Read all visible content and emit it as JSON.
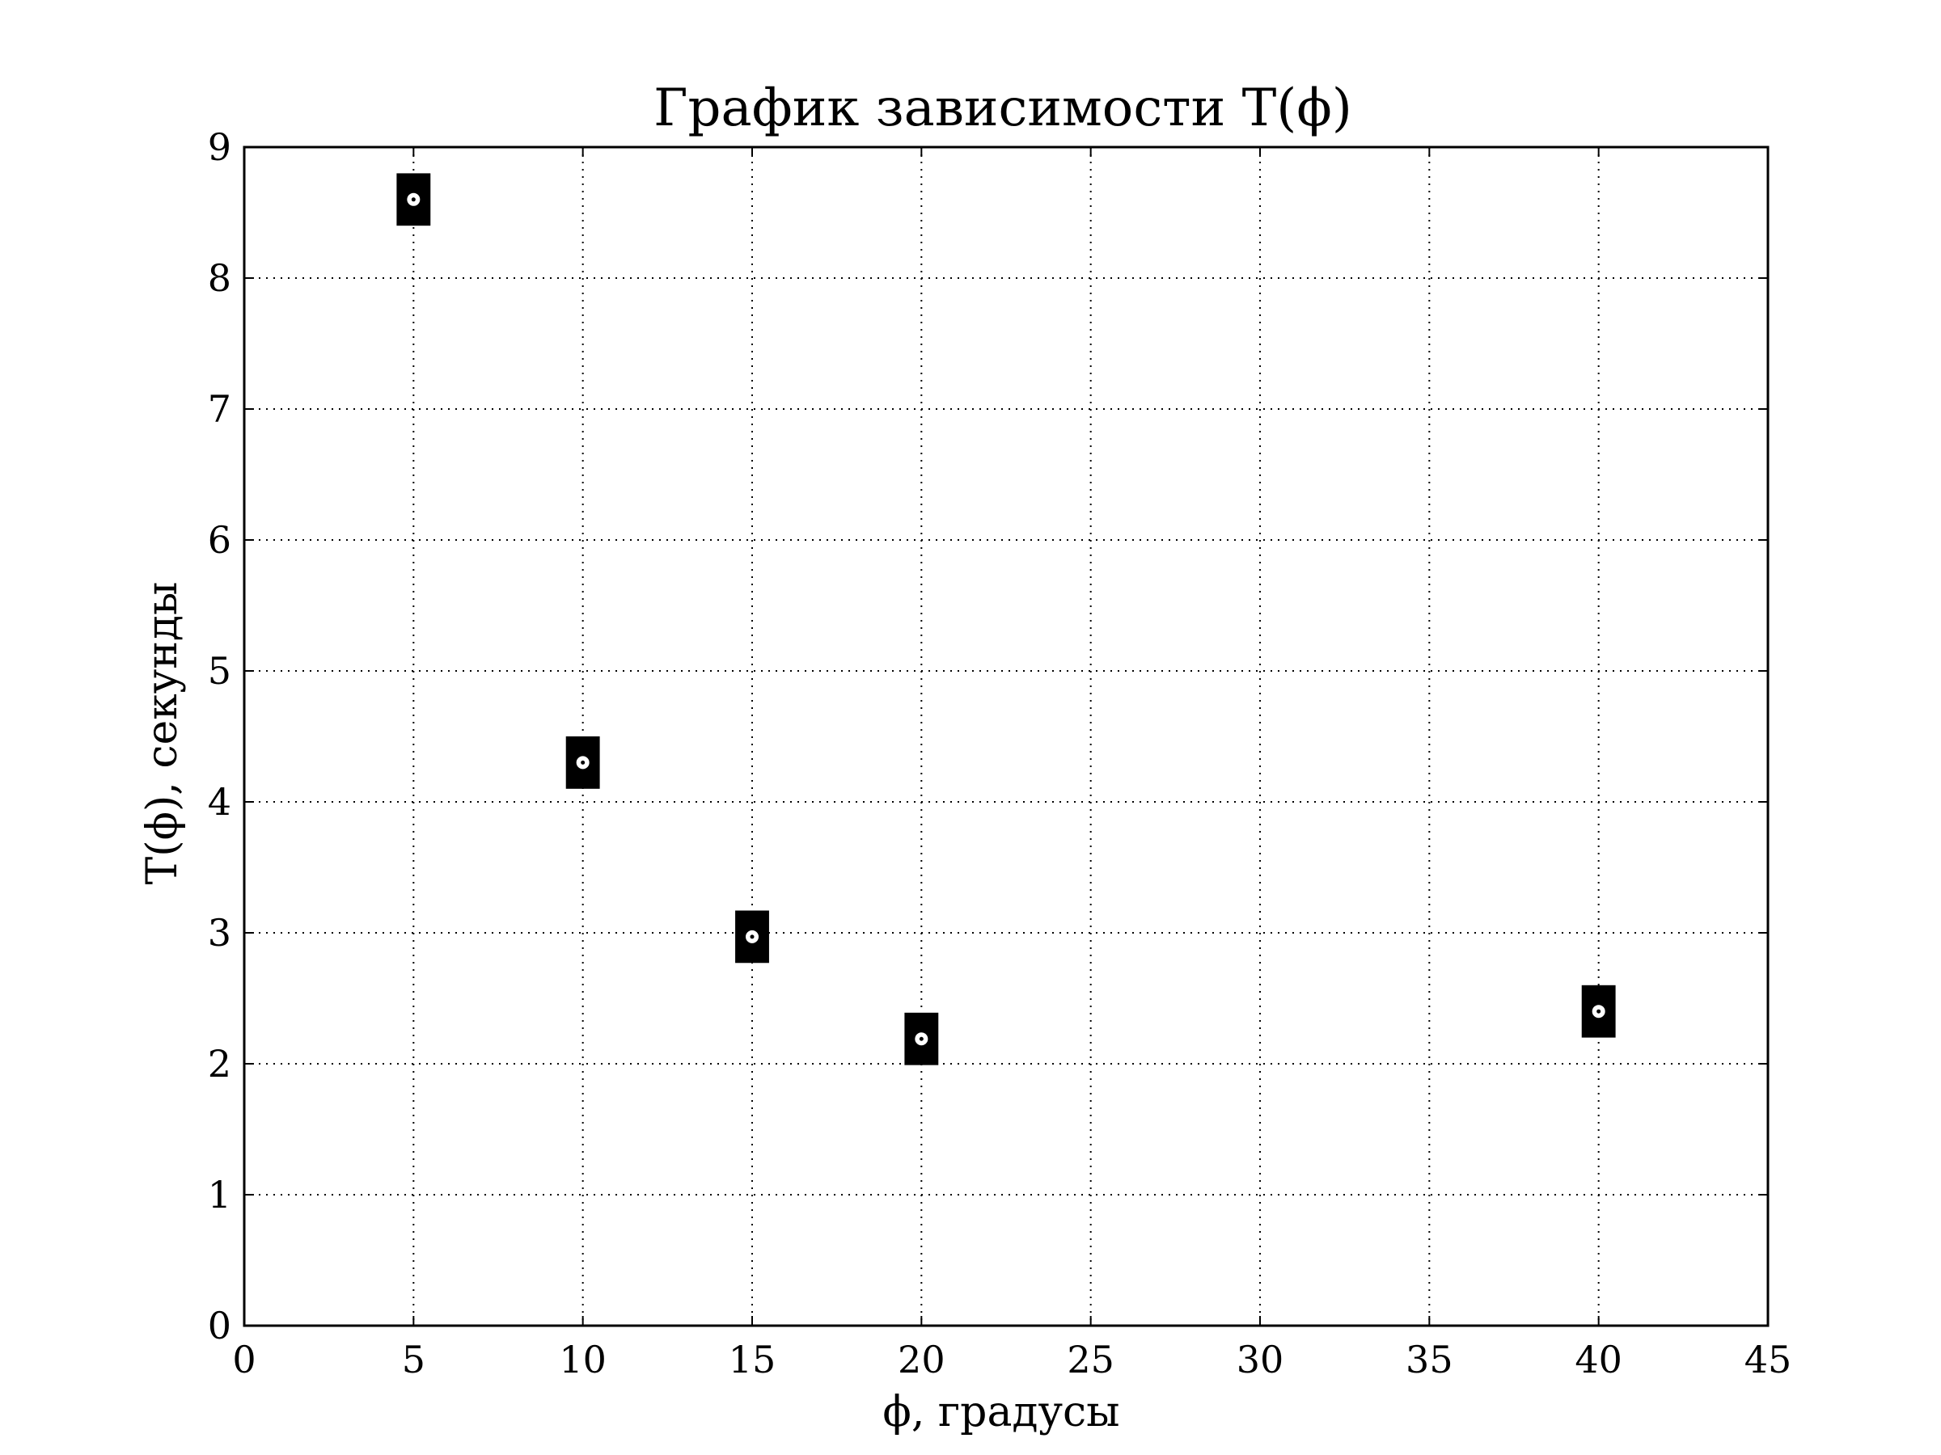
{
  "chart_data": {
    "type": "scatter",
    "title": "График зависимости T(ϕ)",
    "xlabel": "ϕ, градусы",
    "ylabel": "T(ϕ), секунды",
    "xlim": [
      0,
      45
    ],
    "ylim": [
      0,
      9
    ],
    "xticks": [
      "0",
      "5",
      "10",
      "15",
      "20",
      "25",
      "30",
      "35",
      "40",
      "45"
    ],
    "yticks": [
      "0",
      "1",
      "2",
      "3",
      "4",
      "5",
      "6",
      "7",
      "8",
      "9"
    ],
    "grid": true,
    "grid_style": "dotted",
    "marker_color": "#000000",
    "marker_center_color": "#ffffff",
    "series": [
      {
        "points": [
          {
            "x": 5,
            "y": 8.6,
            "xerr": 0.5,
            "yerr": 0.2
          },
          {
            "x": 10,
            "y": 4.3,
            "xerr": 0.5,
            "yerr": 0.2
          },
          {
            "x": 15,
            "y": 2.97,
            "xerr": 0.5,
            "yerr": 0.2
          },
          {
            "x": 20,
            "y": 2.19,
            "xerr": 0.5,
            "yerr": 0.2
          },
          {
            "x": 40,
            "y": 2.4,
            "xerr": 0.5,
            "yerr": 0.2
          }
        ]
      }
    ]
  }
}
